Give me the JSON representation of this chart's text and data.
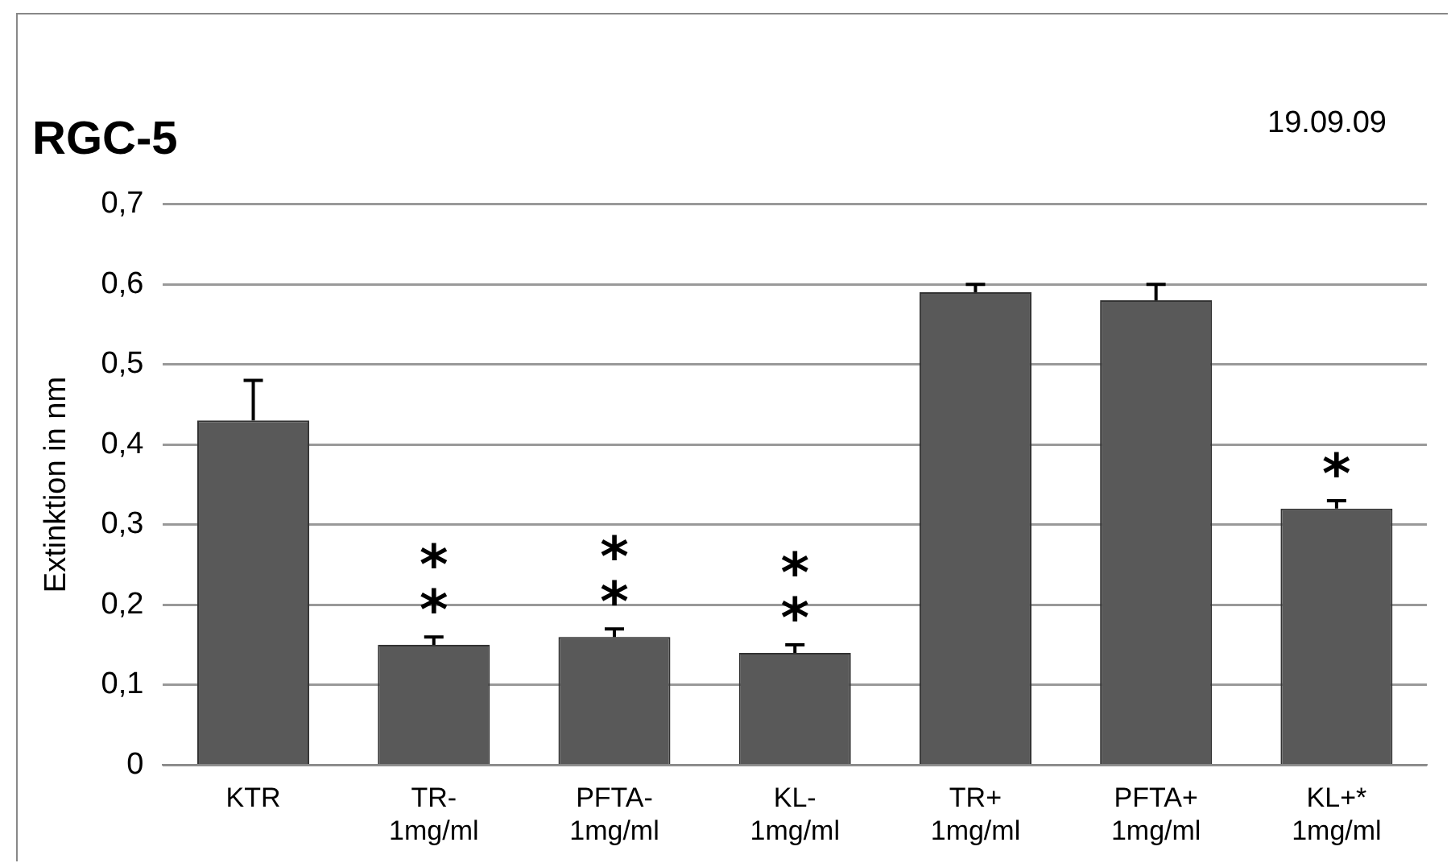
{
  "chart_data": {
    "type": "bar",
    "title": "RGC-5",
    "ylabel": "Extinktion in nm",
    "categories": [
      "KTR",
      "TR- 1mg/ml",
      "PFTA- 1mg/ml",
      "KL- 1mg/ml",
      "TR+ 1mg/ml",
      "PFTA+ 1mg/ml",
      "KL+* 1mg/ml"
    ],
    "values": [
      0.43,
      0.15,
      0.16,
      0.14,
      0.59,
      0.58,
      0.32
    ],
    "errors": [
      [
        0.43,
        0.48
      ],
      [
        0.15,
        0.16
      ],
      [
        0.16,
        0.17
      ],
      [
        0.14,
        0.15
      ],
      [
        0.59,
        0.6
      ],
      [
        0.58,
        0.6
      ],
      [
        0.32,
        0.33
      ]
    ],
    "color": "#595959",
    "ylim": [
      0,
      0.7
    ],
    "yticks": [
      {
        "value": 0,
        "label": "0"
      },
      {
        "value": 0.1,
        "label": "0,1"
      },
      {
        "value": 0.2,
        "label": "0,2"
      },
      {
        "value": 0.3,
        "label": "0,3"
      },
      {
        "value": 0.4,
        "label": "0,4"
      },
      {
        "value": 0.5,
        "label": "0,5"
      },
      {
        "value": 0.6,
        "label": "0,6"
      },
      {
        "value": 0.7,
        "label": "0,7"
      }
    ],
    "grid": "y",
    "legend": false,
    "annotations": [
      "19.09.09",
      {
        "text": "*\n*",
        "x": "TR- 1mg/ml",
        "y": 0.15
      },
      {
        "text": "*\n*",
        "x": "PFTA- 1mg/ml",
        "y": 0.16
      },
      {
        "text": "*\n*",
        "x": "KL- 1mg/ml",
        "y": 0.14
      },
      {
        "text": "*",
        "x": "KL+* 1mg/ml",
        "y": 0.32
      }
    ]
  }
}
